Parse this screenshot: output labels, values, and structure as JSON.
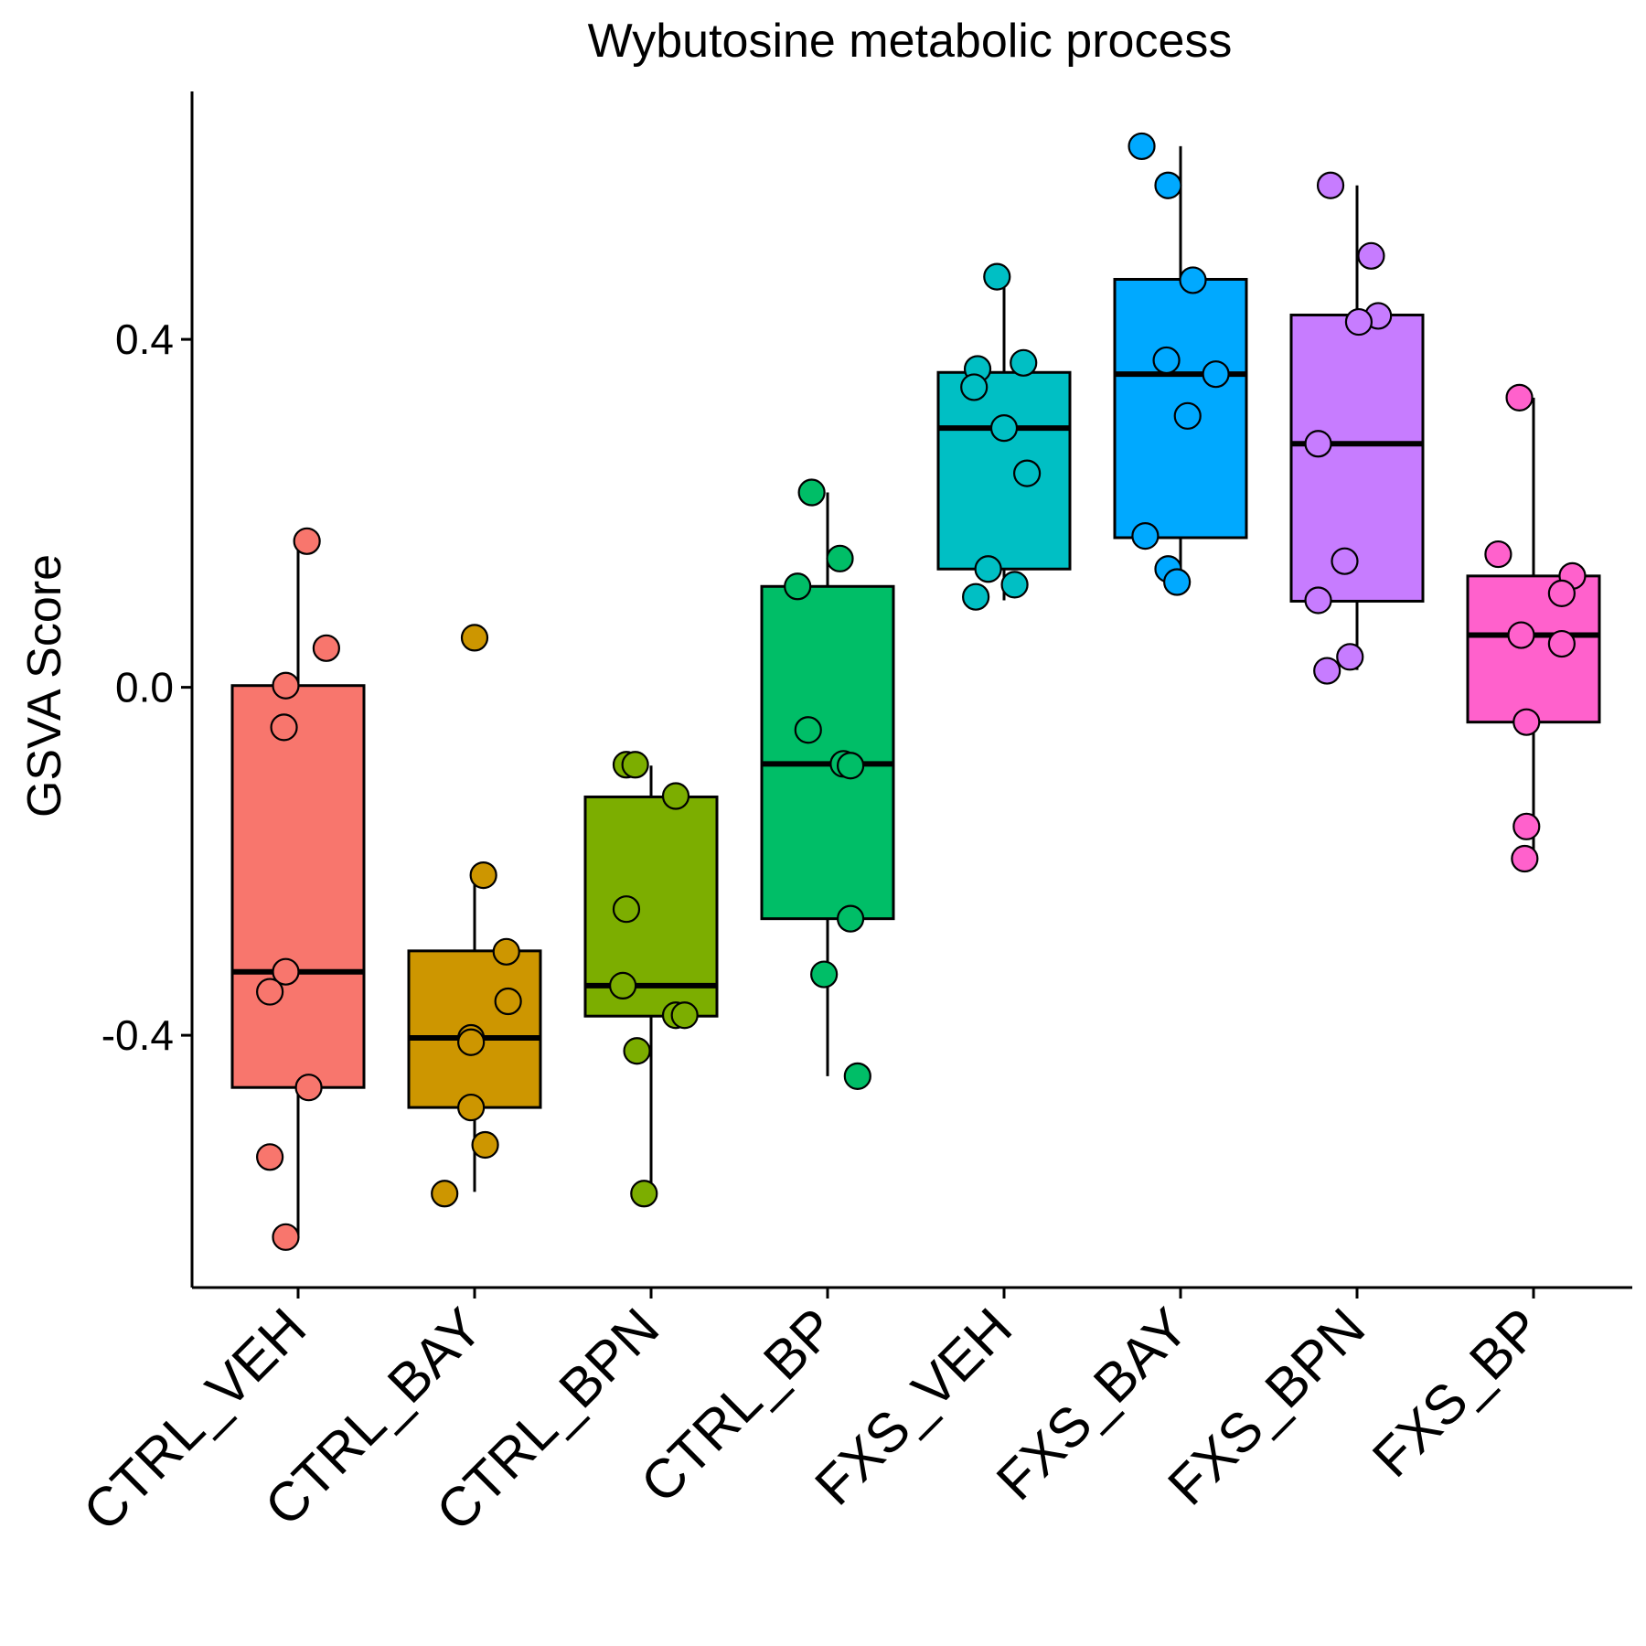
{
  "chart_data": {
    "type": "boxplot",
    "title": "Wybutosine metabolic process",
    "xlabel": "",
    "ylabel": "GSVA Score",
    "ylim": [
      -0.69,
      0.685
    ],
    "yticks": [
      -0.4,
      0.0,
      0.4
    ],
    "ytick_labels": [
      "-0.4",
      "0.0",
      "0.4"
    ],
    "grid": false,
    "legend": "none",
    "categories": [
      "CTRL_VEH",
      "CTRL_BAY",
      "CTRL_BPN",
      "CTRL_BP",
      "FXS_VEH",
      "FXS_BAY",
      "FXS_BPN",
      "FXS_BP"
    ],
    "groups": [
      {
        "name": "CTRL_VEH",
        "color": "#F8766D",
        "box": {
          "q1": -0.46,
          "median": -0.327,
          "q3": 0.002,
          "whisker_low": -0.63,
          "whisker_high": 0.17
        },
        "points": [
          0.168,
          0.045,
          0.002,
          -0.046,
          -0.327,
          -0.35,
          -0.46,
          -0.54,
          -0.632
        ],
        "jitter": [
          0.05,
          0.16,
          -0.07,
          -0.08,
          -0.07,
          -0.16,
          0.06,
          -0.16,
          -0.07
        ]
      },
      {
        "name": "CTRL_BAY",
        "color": "#CD9600",
        "box": {
          "q1": -0.483,
          "median": -0.403,
          "q3": -0.303,
          "whisker_low": -0.58,
          "whisker_high": -0.22
        },
        "points": [
          0.057,
          -0.216,
          -0.304,
          -0.361,
          -0.403,
          -0.408,
          -0.483,
          -0.526,
          -0.582
        ],
        "jitter": [
          0.0,
          0.05,
          0.18,
          0.19,
          -0.02,
          -0.02,
          -0.02,
          0.06,
          -0.17
        ]
      },
      {
        "name": "CTRL_BPN",
        "color": "#7CAE00",
        "box": {
          "q1": -0.378,
          "median": -0.343,
          "q3": -0.126,
          "whisker_low": -0.58,
          "whisker_high": -0.09
        },
        "points": [
          -0.089,
          -0.089,
          -0.125,
          -0.255,
          -0.343,
          -0.377,
          -0.377,
          -0.418,
          -0.582
        ],
        "jitter": [
          -0.14,
          -0.09,
          0.14,
          -0.14,
          -0.16,
          0.14,
          0.19,
          -0.08,
          -0.04
        ]
      },
      {
        "name": "CTRL_BP",
        "color": "#00BE67",
        "box": {
          "q1": -0.266,
          "median": -0.088,
          "q3": 0.116,
          "whisker_low": -0.447,
          "whisker_high": 0.224
        },
        "points": [
          0.224,
          0.148,
          0.116,
          -0.049,
          -0.088,
          -0.09,
          -0.266,
          -0.33,
          -0.447
        ],
        "jitter": [
          -0.09,
          0.07,
          -0.17,
          -0.11,
          0.09,
          0.13,
          0.13,
          -0.02,
          0.17
        ]
      },
      {
        "name": "FXS_VEH",
        "color": "#00BFC4",
        "box": {
          "q1": 0.136,
          "median": 0.298,
          "q3": 0.362,
          "whisker_low": 0.1,
          "whisker_high": 0.47
        },
        "points": [
          0.472,
          0.373,
          0.366,
          0.345,
          0.298,
          0.246,
          0.136,
          0.118,
          0.104
        ],
        "jitter": [
          -0.04,
          0.11,
          -0.15,
          -0.17,
          0.0,
          0.13,
          -0.09,
          0.06,
          -0.16
        ]
      },
      {
        "name": "FXS_BAY",
        "color": "#00A9FF",
        "box": {
          "q1": 0.172,
          "median": 0.36,
          "q3": 0.469,
          "whisker_low": 0.12,
          "whisker_high": 0.622
        },
        "points": [
          0.622,
          0.577,
          0.468,
          0.376,
          0.36,
          0.312,
          0.174,
          0.136,
          0.121
        ],
        "jitter": [
          -0.22,
          -0.07,
          0.07,
          -0.08,
          0.2,
          0.04,
          -0.2,
          -0.07,
          -0.02
        ]
      },
      {
        "name": "FXS_BPN",
        "color": "#C77CFF",
        "box": {
          "q1": 0.099,
          "median": 0.28,
          "q3": 0.428,
          "whisker_low": 0.02,
          "whisker_high": 0.577
        },
        "points": [
          0.577,
          0.496,
          0.427,
          0.42,
          0.28,
          0.145,
          0.1,
          0.035,
          0.019
        ],
        "jitter": [
          -0.15,
          0.08,
          0.12,
          0.01,
          -0.22,
          -0.07,
          -0.22,
          -0.04,
          -0.17
        ]
      },
      {
        "name": "FXS_BP",
        "color": "#FF61CC",
        "box": {
          "q1": -0.04,
          "median": 0.06,
          "q3": 0.128,
          "whisker_low": -0.197,
          "whisker_high": 0.333
        },
        "points": [
          0.333,
          0.153,
          0.128,
          0.108,
          0.06,
          0.05,
          -0.04,
          -0.16,
          -0.197
        ],
        "jitter": [
          -0.08,
          -0.2,
          0.22,
          0.16,
          -0.07,
          0.16,
          -0.04,
          -0.04,
          -0.05
        ]
      }
    ]
  }
}
